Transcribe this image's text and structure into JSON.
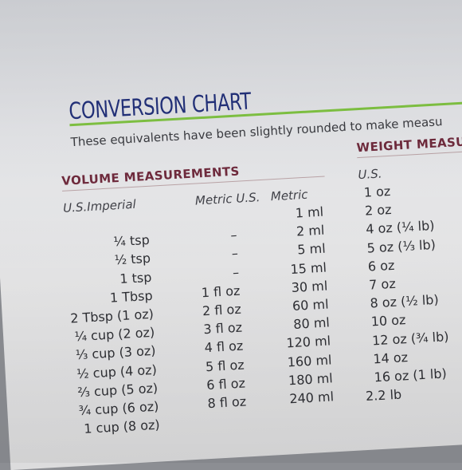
{
  "title": "CONVERSION CHART",
  "subtitle": "These equivalents have been slightly rounded to make measu",
  "volume": {
    "heading": "VOLUME MEASUREMENTS",
    "headers": {
      "us_imperial": "U.S.Imperial",
      "metric_us": "Metric U.S.",
      "metric": "Metric"
    },
    "rows": [
      {
        "us": "",
        "floz": "",
        "ml": "1 ml"
      },
      {
        "us": "¼ tsp",
        "floz": "–",
        "ml": "2 ml"
      },
      {
        "us": "½ tsp",
        "floz": "–",
        "ml": "5 ml"
      },
      {
        "us": "1 tsp",
        "floz": "–",
        "ml": "15 ml"
      },
      {
        "us": "1 Tbsp",
        "floz": "1 fl oz",
        "ml": "30 ml"
      },
      {
        "us": "2 Tbsp (1 oz)",
        "floz": "2 fl oz",
        "ml": "60 ml"
      },
      {
        "us": "¼ cup (2 oz)",
        "floz": "3 fl oz",
        "ml": "80 ml"
      },
      {
        "us": "⅓ cup (3 oz)",
        "floz": "4 fl oz",
        "ml": "120 ml"
      },
      {
        "us": "½ cup (4 oz)",
        "floz": "5 fl oz",
        "ml": "160 ml"
      },
      {
        "us": "⅔ cup (5 oz)",
        "floz": "6 fl oz",
        "ml": "180 ml"
      },
      {
        "us": "¾ cup (6 oz)",
        "floz": "8 fl oz",
        "ml": "240 ml"
      },
      {
        "us": "1 cup (8 oz)",
        "floz": "",
        "ml": ""
      }
    ]
  },
  "weight": {
    "heading": "WEIGHT MEASU",
    "header": "U.S.",
    "rows": [
      "1 oz",
      "2 oz",
      "4 oz (¼ lb)",
      "5 oz (⅓ lb)",
      "6 oz",
      "7 oz",
      "8 oz (½ lb)",
      "10 oz",
      "12 oz (¾ lb)",
      "14 oz",
      "16 oz (1 lb)",
      "2.2 lb"
    ]
  },
  "colors": {
    "title": "#23317a",
    "accent_rule": "#7fc242",
    "section_heading": "#6e2a3c",
    "text": "#2e2f34"
  }
}
